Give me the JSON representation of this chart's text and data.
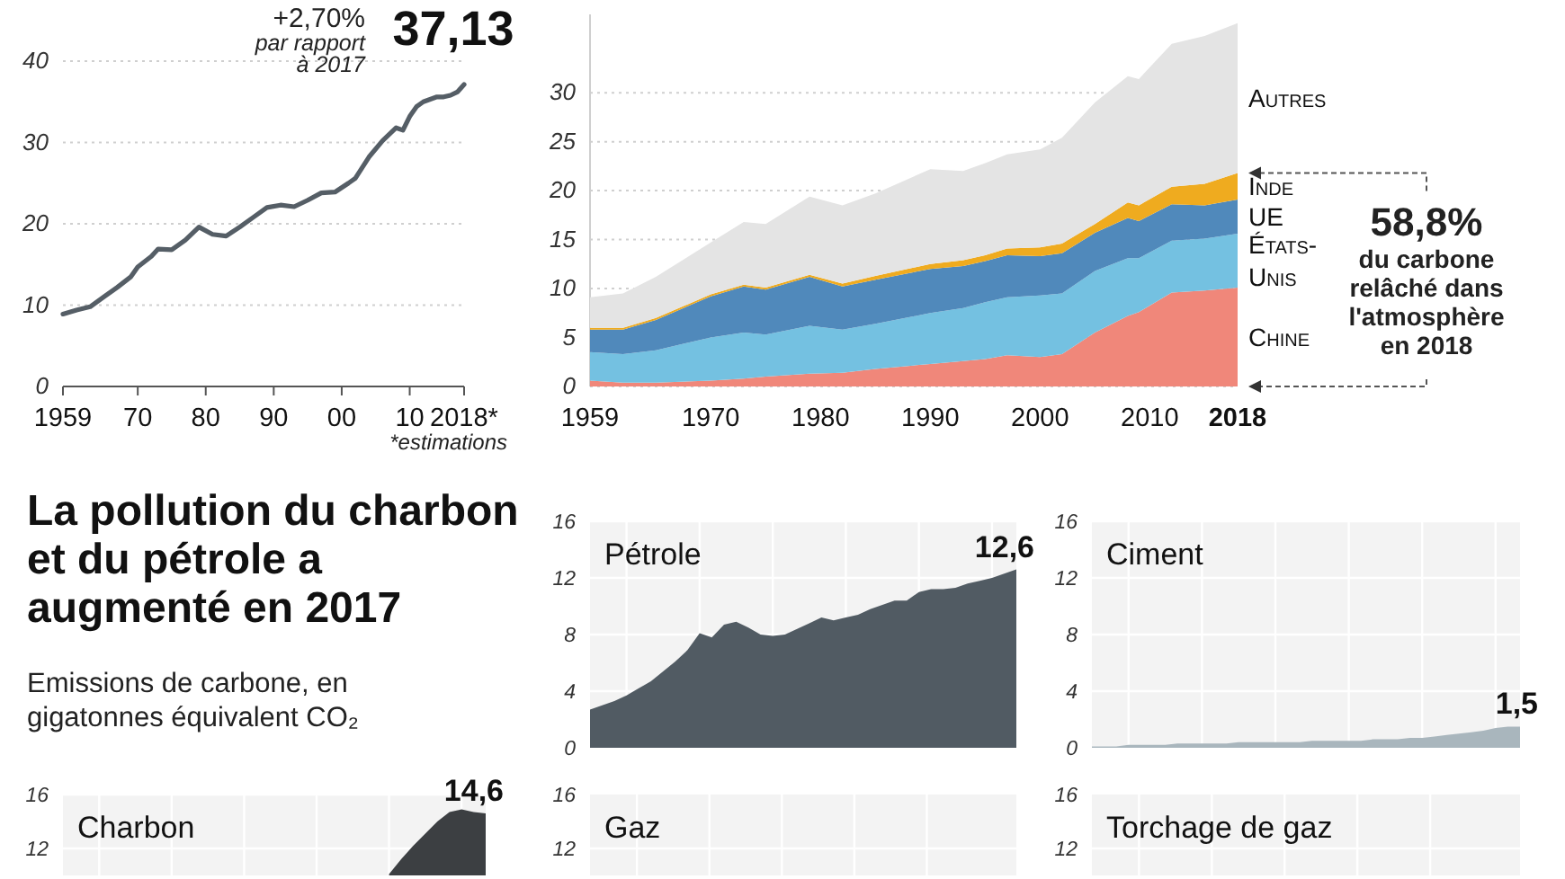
{
  "chart_data": [
    {
      "type": "line",
      "x": [
        1959,
        1961,
        1963,
        1965,
        1967,
        1969,
        1970,
        1972,
        1973,
        1975,
        1977,
        1979,
        1981,
        1983,
        1985,
        1987,
        1989,
        1991,
        1993,
        1995,
        1997,
        1999,
        2001,
        2002,
        2004,
        2006,
        2008,
        2009,
        2010,
        2011,
        2012,
        2013,
        2014,
        2015,
        2016,
        2017,
        2018
      ],
      "values": [
        8.9,
        9.4,
        9.8,
        11.0,
        12.2,
        13.5,
        14.7,
        16.0,
        16.9,
        16.8,
        18.0,
        19.6,
        18.7,
        18.5,
        19.6,
        20.8,
        22.0,
        22.3,
        22.1,
        22.9,
        23.8,
        23.9,
        25.0,
        25.6,
        28.2,
        30.2,
        31.8,
        31.5,
        33.2,
        34.4,
        35.0,
        35.3,
        35.6,
        35.6,
        35.8,
        36.2,
        37.13
      ],
      "color": "#555e66",
      "xlim": [
        1959,
        2018
      ],
      "xticks": [
        1959,
        {
          "value": 1970,
          "label": "70"
        },
        {
          "value": 1980,
          "label": "80"
        },
        {
          "value": 1990,
          "label": "90"
        },
        {
          "value": 2000,
          "label": "00"
        },
        {
          "value": 2010,
          "label": "10"
        },
        {
          "value": 2018,
          "label": "2018*"
        }
      ],
      "ylim": [
        0,
        40
      ],
      "yticks": [
        0,
        10,
        20,
        30,
        40
      ],
      "grid": "y",
      "annotations": [
        "+2,70%",
        "par rapport à 2017",
        "*estimations",
        {
          "text": "37,13",
          "x": 2018,
          "y": 37.13
        }
      ]
    },
    {
      "type": "area",
      "stacked": true,
      "x": [
        1959,
        1962,
        1965,
        1970,
        1973,
        1975,
        1979,
        1982,
        1985,
        1990,
        1993,
        1995,
        1997,
        2000,
        2002,
        2005,
        2008,
        2009,
        2012,
        2015,
        2018
      ],
      "series": [
        {
          "name": "Chine",
          "color": "#f0877a",
          "values": [
            0.6,
            0.4,
            0.4,
            0.6,
            0.8,
            1.0,
            1.3,
            1.4,
            1.8,
            2.3,
            2.6,
            2.8,
            3.2,
            3.0,
            3.3,
            5.5,
            7.2,
            7.6,
            9.6,
            9.8,
            10.1
          ]
        },
        {
          "name": "États-Unis",
          "color": "#74c1e1",
          "values": [
            2.9,
            2.9,
            3.3,
            4.4,
            4.7,
            4.3,
            4.9,
            4.4,
            4.6,
            5.2,
            5.4,
            5.8,
            5.9,
            6.3,
            6.2,
            6.3,
            5.9,
            5.5,
            5.3,
            5.3,
            5.5
          ]
        },
        {
          "name": "UE",
          "color": "#5089bb",
          "values": [
            2.3,
            2.5,
            3.1,
            4.2,
            4.7,
            4.6,
            5.0,
            4.4,
            4.5,
            4.5,
            4.3,
            4.2,
            4.3,
            4.0,
            4.1,
            3.9,
            4.1,
            3.8,
            3.7,
            3.4,
            3.5
          ]
        },
        {
          "name": "Inde",
          "color": "#efab1f",
          "values": [
            0.2,
            0.2,
            0.2,
            0.2,
            0.2,
            0.2,
            0.2,
            0.3,
            0.4,
            0.5,
            0.6,
            0.6,
            0.7,
            0.9,
            1.0,
            0.9,
            1.6,
            1.6,
            1.8,
            2.2,
            2.7
          ]
        },
        {
          "name": "Autres",
          "color": "#e4e4e4",
          "values": [
            3.1,
            3.5,
            4.2,
            5.3,
            6.4,
            6.5,
            8.0,
            8.0,
            8.4,
            9.7,
            9.1,
            9.4,
            9.6,
            10.0,
            10.8,
            12.4,
            12.9,
            12.9,
            14.6,
            15.1,
            15.3
          ]
        }
      ],
      "xlim": [
        1959,
        2018
      ],
      "xticks": [
        1959,
        1970,
        1980,
        1990,
        2000,
        2010,
        2018
      ],
      "ylim": [
        0,
        38
      ],
      "yticks": [
        0,
        5,
        10,
        15,
        20,
        25,
        30
      ],
      "grid": "y",
      "annotations": [
        "58,8%",
        "du carbone relâché dans l'atmosphère en 2018"
      ]
    },
    {
      "type": "other",
      "title": "La pollution du charbon et du pétrole a augmenté en 2017",
      "subtitle": "Emissions de carbone, en gigatonnes équivalent CO₂"
    },
    {
      "type": "area",
      "title": "Pétrole",
      "color": "#515b63",
      "categories": [
        null,
        null,
        null,
        null,
        null,
        null,
        null,
        null,
        null,
        null,
        null,
        null,
        null,
        null,
        null,
        null,
        null,
        null,
        null,
        null,
        null,
        null,
        null,
        null,
        null,
        null,
        null,
        null,
        null,
        null,
        null,
        null,
        null,
        null,
        null,
        null
      ],
      "values": [
        2.7,
        3.0,
        3.3,
        3.7,
        4.2,
        4.7,
        5.4,
        6.1,
        6.9,
        8.1,
        7.8,
        8.7,
        8.9,
        8.5,
        8.0,
        7.9,
        8.0,
        8.4,
        8.8,
        9.2,
        9.0,
        9.2,
        9.4,
        9.8,
        10.1,
        10.4,
        10.4,
        11.0,
        11.2,
        11.2,
        11.3,
        11.6,
        11.8,
        12.0,
        12.3,
        12.6
      ],
      "value_labels": [
        null,
        null,
        null,
        null,
        null,
        null,
        null,
        null,
        null,
        null,
        null,
        null,
        null,
        null,
        null,
        null,
        null,
        null,
        null,
        null,
        null,
        null,
        null,
        null,
        null,
        null,
        null,
        null,
        null,
        null,
        null,
        null,
        null,
        null,
        null,
        "12,6"
      ],
      "ylim": [
        0,
        16
      ],
      "yticks": [
        0,
        4,
        8,
        12,
        16
      ],
      "grid": true,
      "tick_labels": "y"
    },
    {
      "type": "area",
      "title": "Ciment",
      "color": "#a9b6bd",
      "categories": [
        null,
        null,
        null,
        null,
        null,
        null,
        null,
        null,
        null,
        null,
        null,
        null,
        null,
        null,
        null,
        null,
        null,
        null,
        null,
        null,
        null,
        null,
        null,
        null,
        null,
        null,
        null,
        null,
        null,
        null,
        null,
        null,
        null,
        null,
        null,
        null
      ],
      "values": [
        0.1,
        0.1,
        0.1,
        0.2,
        0.2,
        0.2,
        0.2,
        0.3,
        0.3,
        0.3,
        0.3,
        0.3,
        0.4,
        0.4,
        0.4,
        0.4,
        0.4,
        0.4,
        0.5,
        0.5,
        0.5,
        0.5,
        0.5,
        0.6,
        0.6,
        0.6,
        0.7,
        0.7,
        0.8,
        0.9,
        1.0,
        1.1,
        1.2,
        1.4,
        1.5,
        1.5
      ],
      "value_labels": [
        null,
        null,
        null,
        null,
        null,
        null,
        null,
        null,
        null,
        null,
        null,
        null,
        null,
        null,
        null,
        null,
        null,
        null,
        null,
        null,
        null,
        null,
        null,
        null,
        null,
        null,
        null,
        null,
        null,
        null,
        null,
        null,
        null,
        null,
        null,
        "1,5"
      ],
      "ylim": [
        0,
        16
      ],
      "yticks": [
        0,
        4,
        8,
        12,
        16
      ],
      "grid": true,
      "tick_labels": "y"
    },
    {
      "type": "area",
      "title": "Charbon",
      "color": "#3c3f42",
      "categories": [
        null,
        null,
        null,
        null,
        null,
        null,
        null,
        null,
        null,
        null,
        null,
        null,
        null,
        null,
        null,
        null,
        null,
        null,
        null,
        null,
        null,
        null,
        null,
        null,
        null,
        null,
        null,
        null,
        null,
        null,
        null,
        null,
        null,
        null,
        null,
        null
      ],
      "values": [
        null,
        null,
        null,
        null,
        null,
        null,
        null,
        null,
        null,
        null,
        null,
        null,
        null,
        null,
        null,
        null,
        null,
        null,
        null,
        null,
        null,
        null,
        null,
        null,
        null,
        null,
        null,
        10.1,
        11.2,
        12.2,
        13.1,
        14.0,
        14.7,
        14.9,
        14.7,
        14.6
      ],
      "value_labels": [
        null,
        null,
        null,
        null,
        null,
        null,
        null,
        null,
        null,
        null,
        null,
        null,
        null,
        null,
        null,
        null,
        null,
        null,
        null,
        null,
        null,
        null,
        null,
        null,
        null,
        null,
        null,
        null,
        null,
        null,
        null,
        null,
        null,
        null,
        null,
        "14,6"
      ],
      "ylim": [
        10,
        16
      ],
      "yticks": [
        12,
        16
      ],
      "grid": true,
      "tick_labels": "y"
    },
    {
      "type": "other",
      "title": "Gaz",
      "annotations": [
        "16",
        "12"
      ]
    },
    {
      "type": "other",
      "title": "Torchage de gaz",
      "annotations": [
        "16",
        "12"
      ]
    }
  ]
}
